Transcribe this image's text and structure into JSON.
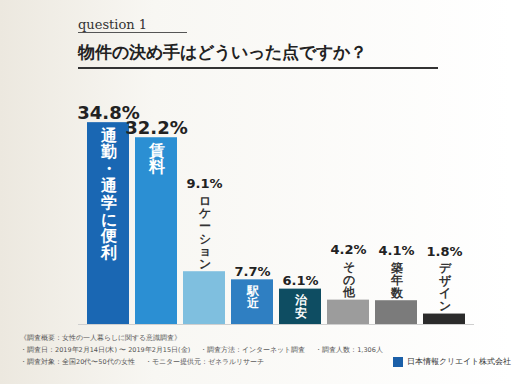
{
  "chart_data": {
    "type": "bar",
    "question_label": "question 1",
    "title": "物件の決め手はどういった点ですか？",
    "categories": [
      "通勤・通学に便利",
      "賃料",
      "ロケーション",
      "駅近",
      "治安",
      "その他",
      "築年数",
      "デザイン"
    ],
    "values": [
      34.8,
      32.2,
      9.1,
      7.7,
      6.1,
      4.2,
      4.1,
      1.8
    ],
    "value_labels": [
      "34.8%",
      "32.2%",
      "9.1%",
      "7.7%",
      "6.1%",
      "4.2%",
      "4.1%",
      "1.8%"
    ],
    "colors": [
      "#1a67b3",
      "#2b8fd3",
      "#7fbfdf",
      "#2f7fc2",
      "#0e4d62",
      "#9c9c9c",
      "#7b7b7b",
      "#2b2b2b"
    ],
    "ylim": [
      0,
      40
    ],
    "data_labels": true,
    "tick_labels": false,
    "notes": [
      [
        "《調査概要：女性の一人暮らしに関する意識調査》"
      ],
      [
        "・調査日：2019年2月14日(木) 〜 2019年2月15日(金)",
        "・調査方法：インターネット調査",
        "・調査人数：1,306人"
      ],
      [
        "・調査対象：全国20代〜50代の女性",
        "・モニター提供元：ゼネラルリサーチ"
      ]
    ],
    "source": "日本情報クリエイト株式会社"
  }
}
